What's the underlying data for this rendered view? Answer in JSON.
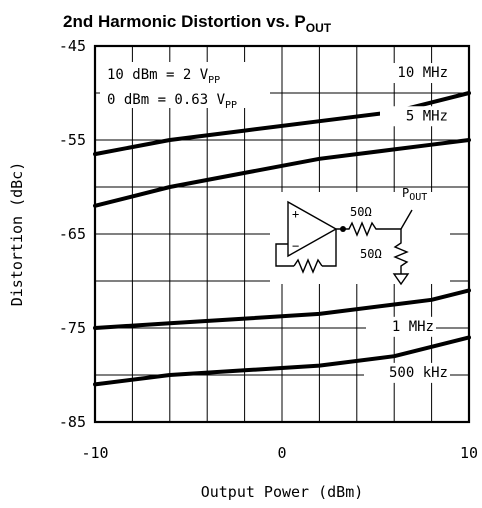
{
  "chart_data": {
    "type": "line",
    "title": "2nd Harmonic Distortion vs. P",
    "title_sub": "OUT",
    "xlabel": "Output Power (dBm)",
    "ylabel": "Distortion (dBc)",
    "xlim": [
      -10,
      10
    ],
    "ylim": [
      -85,
      -45
    ],
    "x_ticks": [
      -10,
      0,
      10
    ],
    "x_tick_labels": [
      "-10",
      "0",
      "10"
    ],
    "y_ticks": [
      -85,
      -75,
      -65,
      -55,
      -45
    ],
    "y_tick_labels": [
      "-85",
      "-75",
      "-65",
      "-55",
      "-45"
    ],
    "grid": true,
    "annotations": [
      {
        "main": "10 dBm = 2 V",
        "sub": "PP"
      },
      {
        "main": "0 dBm = 0.63 V",
        "sub": "PP"
      }
    ],
    "series": [
      {
        "name": "10 MHz",
        "x": [
          -10,
          -6,
          -2,
          2,
          6,
          8,
          10
        ],
        "y": [
          -56.5,
          -55.0,
          -54.0,
          -53.0,
          -52.0,
          -51.0,
          -50.0
        ]
      },
      {
        "name": "5 MHz",
        "x": [
          -10,
          -6,
          -2,
          2,
          6,
          8,
          10
        ],
        "y": [
          -62.0,
          -60.0,
          -58.5,
          -57.0,
          -56.0,
          -55.5,
          -55.0
        ]
      },
      {
        "name": "1 MHz",
        "x": [
          -10,
          -6,
          -2,
          2,
          6,
          8,
          10
        ],
        "y": [
          -75.0,
          -74.5,
          -74.0,
          -73.5,
          -72.5,
          -72.0,
          -71.0
        ]
      },
      {
        "name": "500 kHz",
        "x": [
          -10,
          -6,
          -2,
          2,
          6,
          8,
          10
        ],
        "y": [
          -81.0,
          -80.0,
          -79.5,
          -79.0,
          -78.0,
          -77.0,
          -76.0
        ]
      }
    ],
    "circuit": {
      "plus": "+",
      "minus": "−",
      "r_series": "50Ω",
      "r_load": "50Ω",
      "output_label": "P",
      "output_label_sub": "OUT"
    }
  }
}
